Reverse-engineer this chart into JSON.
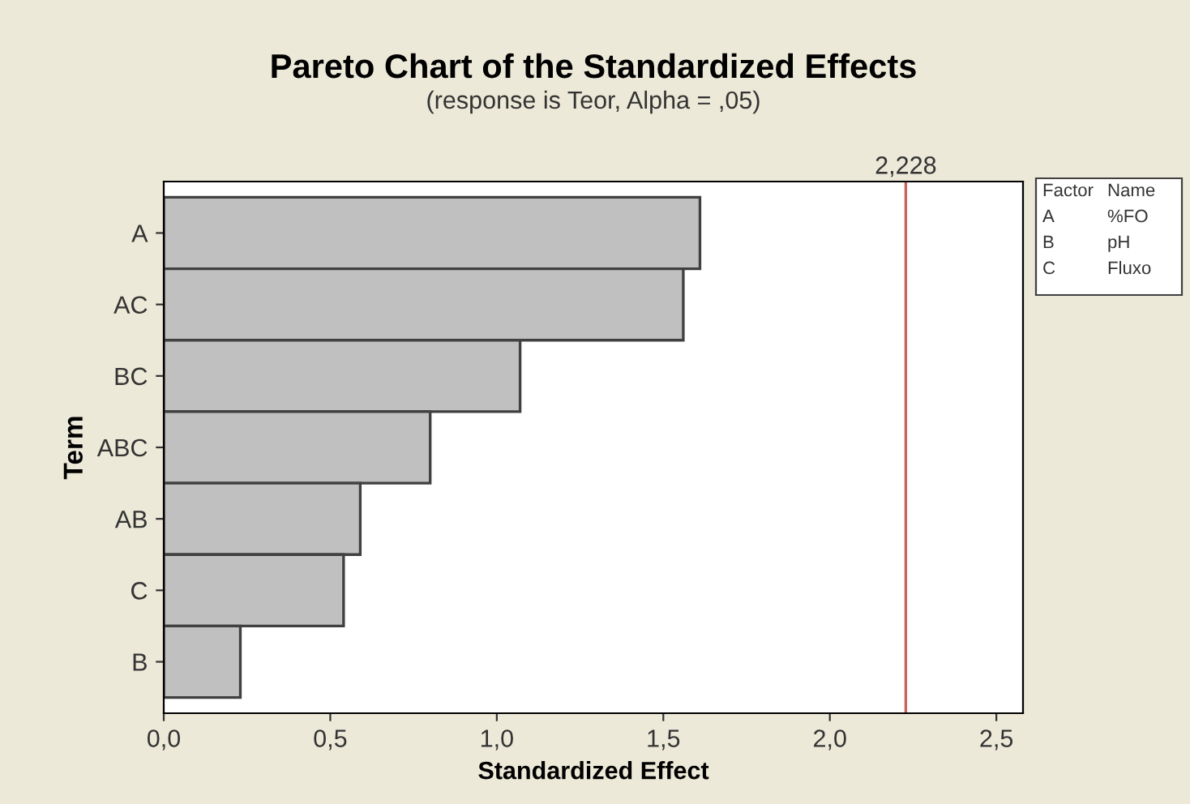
{
  "chart_data": {
    "type": "bar",
    "orientation": "horizontal",
    "title": "Pareto Chart of the Standardized Effects",
    "subtitle": "(response is Teor, Alpha = ,05)",
    "xlabel": "Standardized Effect",
    "ylabel": "Term",
    "categories": [
      "A",
      "AC",
      "BC",
      "ABC",
      "AB",
      "C",
      "B"
    ],
    "values": [
      1.61,
      1.56,
      1.07,
      0.8,
      0.59,
      0.54,
      0.23
    ],
    "color": "#c0c0c0",
    "xlim": [
      0,
      2.58
    ],
    "xticks": [
      {
        "value": 0,
        "label": "0,0"
      },
      {
        "value": 0.5,
        "label": "0,5"
      },
      {
        "value": 1.0,
        "label": "1,0"
      },
      {
        "value": 1.5,
        "label": "1,5"
      },
      {
        "value": 2.0,
        "label": "2,0"
      },
      {
        "value": 2.5,
        "label": "2,5"
      }
    ],
    "ref_lines": [
      {
        "axis": "x",
        "value": 2.228,
        "label": "2,228",
        "color": "#c8625e"
      }
    ],
    "annotations": [
      "Factor",
      "Name",
      "A",
      "%FO",
      "B",
      "pH",
      "C",
      "Fluxo"
    ],
    "grid": false
  }
}
